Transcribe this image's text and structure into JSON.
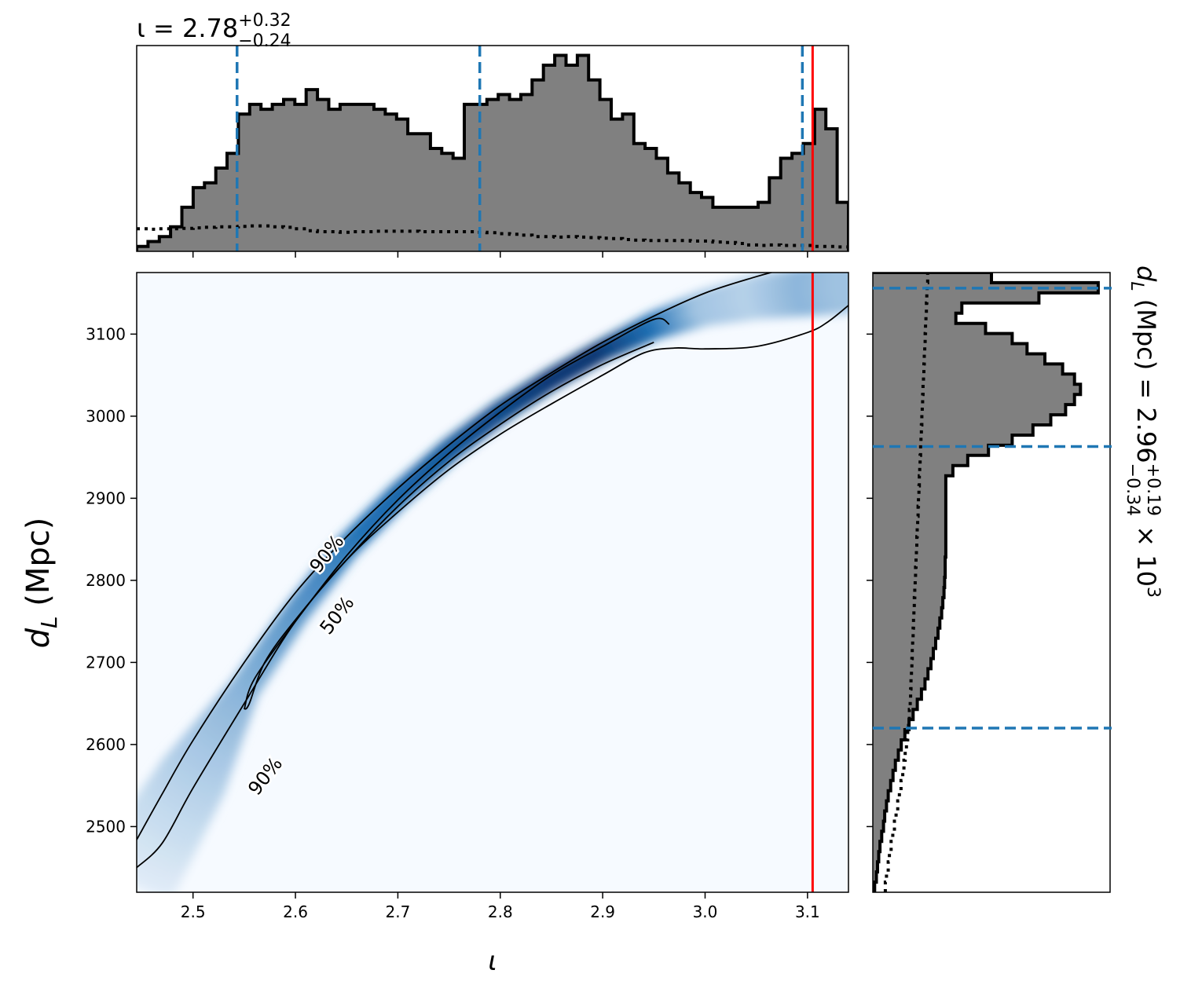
{
  "chart_data": {
    "type": "corner-plot",
    "x_param": {
      "symbol": "ι",
      "axis_label": "ι",
      "median": "2.78",
      "err_plus": "+0.32",
      "err_minus": "−0.24",
      "xlim": [
        2.445,
        3.14
      ],
      "ticks": [
        2.5,
        2.6,
        2.7,
        2.8,
        2.9,
        3.0,
        3.1
      ],
      "tick_labels": [
        "2.5",
        "2.6",
        "2.7",
        "2.8",
        "2.9",
        "3.0",
        "3.1"
      ],
      "quantile_lines": [
        2.543,
        2.78,
        3.095
      ],
      "true_value": 3.105
    },
    "y_param": {
      "symbol": "d",
      "subscript": "L",
      "unit": "(Mpc)",
      "median": "2.96",
      "err_plus": "+0.19",
      "err_minus": "−0.34",
      "multiplier": "× 10",
      "exponent": "3",
      "ylim": [
        2420,
        3175
      ],
      "ticks": [
        2500,
        2600,
        2700,
        2800,
        2900,
        3000,
        3100
      ],
      "tick_labels": [
        "2500",
        "2600",
        "2700",
        "2800",
        "2900",
        "3000",
        "3100"
      ],
      "quantile_lines": [
        2620,
        2963,
        3156
      ]
    },
    "x_histogram": {
      "bin_edges": [
        2.445,
        3.14
      ],
      "counts": [
        1,
        2,
        3,
        5,
        9,
        13,
        14,
        17,
        20,
        28,
        30,
        29,
        30,
        31,
        30,
        33,
        31,
        29,
        30,
        30,
        30,
        29,
        28,
        27,
        24,
        24,
        21,
        20,
        19,
        30,
        30,
        31,
        32,
        31,
        32,
        35,
        38,
        40,
        38,
        40,
        35,
        31,
        27,
        28,
        22,
        21,
        19,
        16,
        14,
        12,
        11,
        9,
        9,
        9,
        9,
        10,
        15,
        19,
        20,
        22,
        29,
        25,
        10
      ],
      "prior_counts": [
        4.6,
        4.5,
        4.6,
        4.6,
        4.7,
        4.8,
        4.9,
        5.0,
        5.0,
        5.1,
        5.2,
        5.2,
        5.0,
        4.9,
        4.6,
        4.2,
        4.0,
        4.0,
        3.9,
        4.0,
        4.0,
        4.1,
        4.1,
        4.1,
        4.1,
        4.0,
        4.0,
        4.0,
        4.0,
        4.0,
        3.9,
        3.8,
        3.6,
        3.5,
        3.3,
        3.0,
        3.0,
        2.9,
        3.0,
        2.9,
        2.8,
        2.7,
        2.6,
        2.4,
        2.3,
        2.2,
        2.2,
        2.2,
        2.2,
        2.1,
        2.1,
        1.9,
        1.8,
        1.6,
        1.3,
        1.2,
        1.3,
        1.2,
        1.2,
        1.2,
        1.0,
        1.0,
        0.9
      ],
      "ymax": 42
    },
    "y_histogram": {
      "bin_edges": [
        2420,
        3175
      ],
      "counts": [
        0.3,
        0.6,
        0.8,
        1.0,
        1.2,
        1.5,
        1.8,
        2.0,
        2.3,
        2.6,
        3.0,
        3.4,
        3.8,
        4.3,
        4.8,
        5.4,
        6.1,
        6.8,
        7.5,
        8.2,
        8.8,
        9.3,
        9.8,
        10.2,
        10.6,
        11.0,
        11.3,
        11.6,
        11.8,
        12.0,
        12.1,
        12.2,
        12.2,
        12.3,
        12.3,
        12.3,
        12.3,
        12.3,
        12.3,
        12.3,
        12.3,
        13.5,
        16.0,
        19.5,
        23.5,
        27.0,
        30.0,
        32.5,
        34.0,
        35.0,
        34.0,
        32.0,
        29.0,
        26.0,
        23.5,
        19.0,
        14.0,
        15.0,
        28.0,
        38.0,
        20.0
      ],
      "prior_counts": [
        3.0,
        3.3,
        3.7,
        4.0,
        4.4,
        4.8,
        5.2,
        5.6,
        6.0,
        6.4,
        6.8,
        7.2,
        7.5,
        7.8,
        8.1,
        8.4,
        8.6,
        8.8,
        9.0,
        9.1,
        9.2,
        9.3,
        9.4,
        9.5,
        9.6,
        9.7,
        9.8,
        9.9,
        10.0,
        10.1,
        10.2,
        10.3,
        10.4,
        10.5,
        10.6,
        10.7,
        10.8,
        10.9,
        11.0,
        11.1,
        11.2,
        11.3,
        11.4,
        11.5,
        11.6,
        11.7,
        11.8,
        11.9,
        12.0,
        12.1,
        12.2,
        12.3,
        12.4,
        12.5,
        12.6,
        12.7,
        12.8,
        12.9,
        13.0,
        13.1,
        13.2
      ],
      "xmax": 40
    },
    "density": {
      "ridge": [
        [
          2.445,
          2445
        ],
        [
          2.5,
          2560
        ],
        [
          2.55,
          2668
        ],
        [
          2.6,
          2760
        ],
        [
          2.65,
          2840
        ],
        [
          2.7,
          2903
        ],
        [
          2.75,
          2958
        ],
        [
          2.8,
          3005
        ],
        [
          2.85,
          3045
        ],
        [
          2.9,
          3080
        ],
        [
          2.95,
          3110
        ],
        [
          3.0,
          3132
        ],
        [
          3.05,
          3145
        ],
        [
          3.1,
          3152
        ],
        [
          3.14,
          3158
        ]
      ],
      "intensity": [
        0.05,
        0.15,
        0.25,
        0.35,
        0.45,
        0.55,
        0.66,
        0.78,
        0.92,
        0.95,
        0.55,
        0.2,
        0.15,
        0.25,
        0.2
      ],
      "width": [
        100,
        80,
        35,
        30,
        28,
        27,
        26,
        25,
        24,
        24,
        30,
        40,
        50,
        55,
        60
      ],
      "cmap_low": "#f6faff",
      "cmap_high": "#08306b"
    },
    "contours": [
      {
        "label": "90%",
        "label_positions": [
          [
            2.63,
            2833,
            -52
          ],
          [
            2.57,
            2562,
            -52
          ]
        ],
        "upper": [
          [
            2.445,
            2484
          ],
          [
            2.47,
            2540
          ],
          [
            2.5,
            2605
          ],
          [
            2.55,
            2700
          ],
          [
            2.6,
            2785
          ],
          [
            2.65,
            2853
          ],
          [
            2.7,
            2912
          ],
          [
            2.75,
            2965
          ],
          [
            2.8,
            3013
          ],
          [
            2.85,
            3053
          ],
          [
            2.9,
            3090
          ],
          [
            2.95,
            3122
          ],
          [
            3.0,
            3150
          ],
          [
            3.05,
            3170
          ],
          [
            3.08,
            3180
          ]
        ],
        "lower": [
          [
            3.14,
            3135
          ],
          [
            3.12,
            3115
          ],
          [
            3.1,
            3102
          ],
          [
            3.05,
            3085
          ],
          [
            3.0,
            3082
          ],
          [
            2.97,
            3083
          ],
          [
            2.94,
            3077
          ],
          [
            2.9,
            3050
          ],
          [
            2.85,
            3015
          ],
          [
            2.8,
            2978
          ],
          [
            2.75,
            2935
          ],
          [
            2.7,
            2883
          ],
          [
            2.65,
            2825
          ],
          [
            2.6,
            2750
          ],
          [
            2.55,
            2650
          ],
          [
            2.5,
            2547
          ],
          [
            2.47,
            2480
          ],
          [
            2.445,
            2450
          ]
        ]
      },
      {
        "label": "50%",
        "label_positions": [
          [
            2.64,
            2758,
            -52
          ]
        ],
        "upper": [
          [
            2.55,
            2643
          ],
          [
            2.56,
            2680
          ],
          [
            2.6,
            2750
          ],
          [
            2.65,
            2830
          ],
          [
            2.7,
            2898
          ],
          [
            2.75,
            2955
          ],
          [
            2.8,
            3005
          ],
          [
            2.85,
            3050
          ],
          [
            2.9,
            3085
          ],
          [
            2.95,
            3118
          ],
          [
            2.965,
            3112
          ]
        ],
        "lower": [
          [
            2.95,
            3090
          ],
          [
            2.9,
            3063
          ],
          [
            2.85,
            3030
          ],
          [
            2.8,
            2990
          ],
          [
            2.75,
            2945
          ],
          [
            2.7,
            2890
          ],
          [
            2.65,
            2825
          ],
          [
            2.6,
            2752
          ],
          [
            2.57,
            2700
          ],
          [
            2.555,
            2650
          ],
          [
            2.55,
            2643
          ]
        ]
      }
    ],
    "colors": {
      "histogram_fill": "#808080",
      "histogram_edge": "#000000",
      "quantile_line": "#1f77b4",
      "truth_line": "#ff0000",
      "contour": "#000000"
    }
  }
}
